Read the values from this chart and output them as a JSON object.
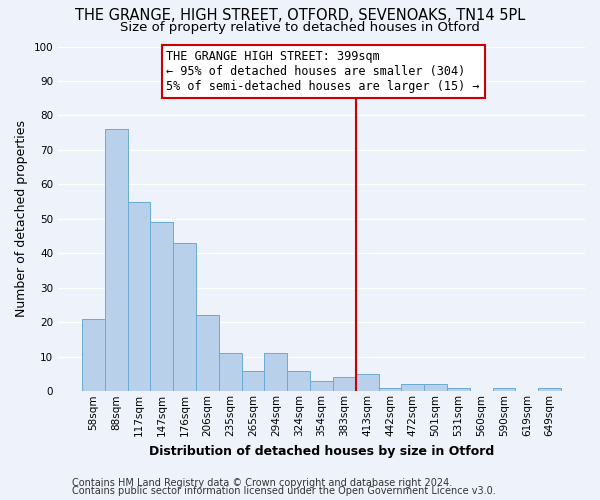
{
  "title": "THE GRANGE, HIGH STREET, OTFORD, SEVENOAKS, TN14 5PL",
  "subtitle": "Size of property relative to detached houses in Otford",
  "xlabel": "Distribution of detached houses by size in Otford",
  "ylabel": "Number of detached properties",
  "footer1": "Contains HM Land Registry data © Crown copyright and database right 2024.",
  "footer2": "Contains public sector information licensed under the Open Government Licence v3.0.",
  "bar_labels": [
    "58sqm",
    "88sqm",
    "117sqm",
    "147sqm",
    "176sqm",
    "206sqm",
    "235sqm",
    "265sqm",
    "294sqm",
    "324sqm",
    "354sqm",
    "383sqm",
    "413sqm",
    "442sqm",
    "472sqm",
    "501sqm",
    "531sqm",
    "560sqm",
    "590sqm",
    "619sqm",
    "649sqm"
  ],
  "bar_values": [
    21,
    76,
    55,
    49,
    43,
    22,
    11,
    6,
    11,
    6,
    3,
    4,
    5,
    1,
    2,
    2,
    1,
    0,
    1,
    0,
    1
  ],
  "bar_color": "#b8d0ea",
  "bar_edge_color": "#6aaad4",
  "ylim": [
    0,
    100
  ],
  "vline_color": "#cc0000",
  "annotation_title": "THE GRANGE HIGH STREET: 399sqm",
  "annotation_line1": "← 95% of detached houses are smaller (304)",
  "annotation_line2": "5% of semi-detached houses are larger (15) →",
  "bg_color": "#eef2fa",
  "grid_color": "#ffffff",
  "title_fontsize": 10.5,
  "subtitle_fontsize": 9.5,
  "label_fontsize": 9,
  "tick_fontsize": 7.5,
  "annot_fontsize": 8.5,
  "footer_fontsize": 7
}
